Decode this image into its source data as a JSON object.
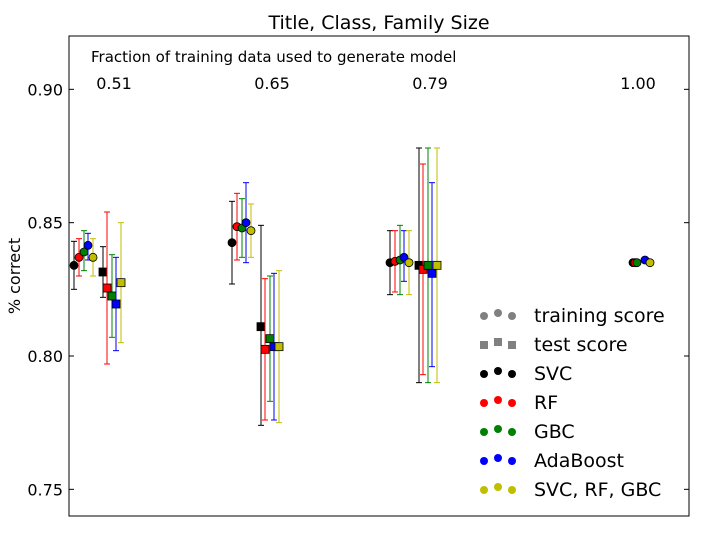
{
  "chart_data": {
    "type": "scatter",
    "title": "Title, Class, Family Size",
    "ylabel": "% correct",
    "xlabel": "",
    "annotation": "Fraction of training data used to generate model",
    "ylim": [
      0.74,
      0.92
    ],
    "yticks": [
      "0.75",
      "0.80",
      "0.85",
      "0.90"
    ],
    "ytick_values": [
      0.75,
      0.8,
      0.85,
      0.9
    ],
    "fractions": [
      "0.51",
      "0.65",
      "0.79",
      "1.00"
    ],
    "grid": false,
    "legend_position": "lower-right",
    "legend": {
      "markers": [
        {
          "label": "training score",
          "marker": "circle",
          "color": "#808080"
        },
        {
          "label": "test score",
          "marker": "square",
          "color": "#808080"
        }
      ],
      "models": [
        {
          "label": "SVC",
          "color": "#000000"
        },
        {
          "label": "RF",
          "color": "#ff0000"
        },
        {
          "label": "GBC",
          "color": "#008000"
        },
        {
          "label": "AdaBoost",
          "color": "#0000ff"
        },
        {
          "label": "SVC, RF, GBC",
          "color": "#bfbf00"
        }
      ]
    },
    "groups": [
      {
        "fraction": "0.51",
        "train": [
          {
            "model": "SVC",
            "y": 0.834,
            "lo": 0.825,
            "hi": 0.843
          },
          {
            "model": "RF",
            "y": 0.837,
            "lo": 0.83,
            "hi": 0.844
          },
          {
            "model": "GBC",
            "y": 0.839,
            "lo": 0.832,
            "hi": 0.847
          },
          {
            "model": "AdaBoost",
            "y": 0.8415,
            "lo": 0.836,
            "hi": 0.846
          },
          {
            "model": "SVC, RF, GBC",
            "y": 0.837,
            "lo": 0.83,
            "hi": 0.844
          }
        ],
        "test": [
          {
            "model": "SVC",
            "y": 0.8315,
            "lo": 0.822,
            "hi": 0.841
          },
          {
            "model": "RF",
            "y": 0.8255,
            "lo": 0.797,
            "hi": 0.854
          },
          {
            "model": "GBC",
            "y": 0.8225,
            "lo": 0.807,
            "hi": 0.838
          },
          {
            "model": "AdaBoost",
            "y": 0.8195,
            "lo": 0.802,
            "hi": 0.837
          },
          {
            "model": "SVC, RF, GBC",
            "y": 0.8275,
            "lo": 0.805,
            "hi": 0.85
          }
        ]
      },
      {
        "fraction": "0.65",
        "train": [
          {
            "model": "SVC",
            "y": 0.8425,
            "lo": 0.827,
            "hi": 0.858
          },
          {
            "model": "RF",
            "y": 0.8485,
            "lo": 0.836,
            "hi": 0.861
          },
          {
            "model": "GBC",
            "y": 0.848,
            "lo": 0.837,
            "hi": 0.859
          },
          {
            "model": "AdaBoost",
            "y": 0.85,
            "lo": 0.835,
            "hi": 0.865
          },
          {
            "model": "SVC, RF, GBC",
            "y": 0.847,
            "lo": 0.837,
            "hi": 0.857
          }
        ],
        "test": [
          {
            "model": "SVC",
            "y": 0.811,
            "lo": 0.774,
            "hi": 0.849
          },
          {
            "model": "RF",
            "y": 0.8025,
            "lo": 0.776,
            "hi": 0.829
          },
          {
            "model": "GBC",
            "y": 0.8065,
            "lo": 0.783,
            "hi": 0.83
          },
          {
            "model": "AdaBoost",
            "y": 0.8035,
            "lo": 0.776,
            "hi": 0.831
          },
          {
            "model": "SVC, RF, GBC",
            "y": 0.8035,
            "lo": 0.775,
            "hi": 0.832
          }
        ]
      },
      {
        "fraction": "0.79",
        "train": [
          {
            "model": "SVC",
            "y": 0.835,
            "lo": 0.823,
            "hi": 0.847
          },
          {
            "model": "RF",
            "y": 0.8355,
            "lo": 0.824,
            "hi": 0.847
          },
          {
            "model": "GBC",
            "y": 0.836,
            "lo": 0.823,
            "hi": 0.849
          },
          {
            "model": "AdaBoost",
            "y": 0.837,
            "lo": 0.828,
            "hi": 0.847
          },
          {
            "model": "SVC, RF, GBC",
            "y": 0.835,
            "lo": 0.823,
            "hi": 0.847
          }
        ],
        "test": [
          {
            "model": "SVC",
            "y": 0.834,
            "lo": 0.79,
            "hi": 0.878
          },
          {
            "model": "RF",
            "y": 0.8325,
            "lo": 0.793,
            "hi": 0.872
          },
          {
            "model": "GBC",
            "y": 0.834,
            "lo": 0.79,
            "hi": 0.878
          },
          {
            "model": "AdaBoost",
            "y": 0.831,
            "lo": 0.796,
            "hi": 0.865
          },
          {
            "model": "SVC, RF, GBC",
            "y": 0.834,
            "lo": 0.79,
            "hi": 0.878
          }
        ]
      },
      {
        "fraction": "1.00",
        "train": [
          {
            "model": "SVC",
            "y": 0.835,
            "lo": 0.835,
            "hi": 0.835
          },
          {
            "model": "RF",
            "y": 0.835,
            "lo": 0.835,
            "hi": 0.835
          },
          {
            "model": "GBC",
            "y": 0.835,
            "lo": 0.835,
            "hi": 0.835
          },
          {
            "model": "AdaBoost",
            "y": 0.836,
            "lo": 0.836,
            "hi": 0.836
          },
          {
            "model": "SVC, RF, GBC",
            "y": 0.835,
            "lo": 0.835,
            "hi": 0.835
          }
        ],
        "test": []
      }
    ]
  }
}
